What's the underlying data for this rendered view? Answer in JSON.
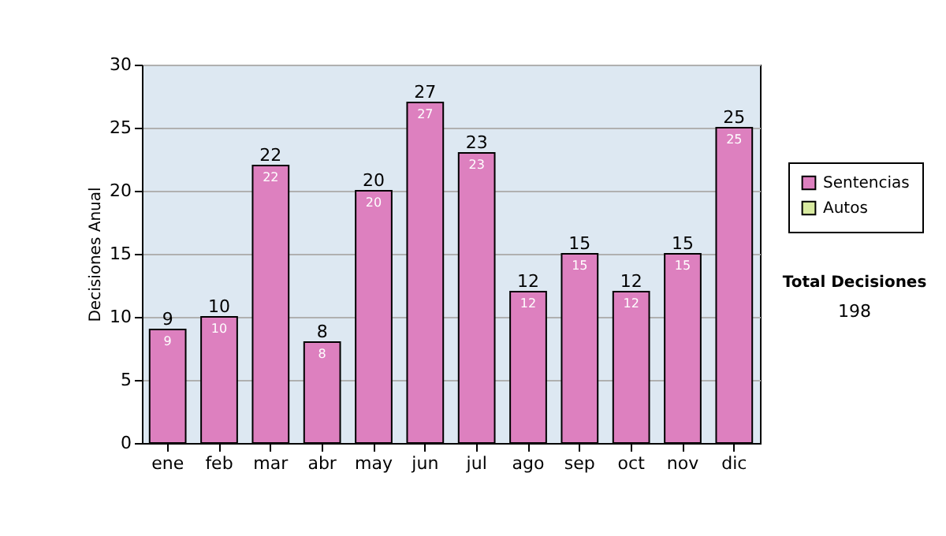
{
  "chart_data": {
    "type": "bar",
    "ylabel": "Decisiones Anual",
    "categories": [
      "ene",
      "feb",
      "mar",
      "abr",
      "may",
      "jun",
      "jul",
      "ago",
      "sep",
      "oct",
      "nov",
      "dic"
    ],
    "series": [
      {
        "name": "Sentencias",
        "color": "#dd80bf",
        "values": [
          9,
          10,
          22,
          8,
          20,
          27,
          23,
          12,
          15,
          12,
          15,
          25
        ],
        "value_labels": [
          "9",
          "10",
          "22",
          "8",
          "20",
          "27",
          "23",
          "12",
          "15",
          "12",
          "15",
          "25"
        ]
      },
      {
        "name": "Autos",
        "color": "#d8eaa0",
        "values": [
          0,
          0,
          0,
          0,
          0,
          0,
          0,
          0,
          0,
          0,
          0,
          0
        ]
      }
    ],
    "stacked": true,
    "totals": [
      "9",
      "10",
      "22",
      "8",
      "20",
      "27",
      "23",
      "12",
      "15",
      "12",
      "15",
      "25"
    ],
    "ylim": [
      0,
      30
    ],
    "yticks": [
      0,
      5,
      10,
      15,
      20,
      25,
      30
    ],
    "grid": "y",
    "legend": "right",
    "annotations": [
      "Total Decisiones",
      "198"
    ]
  }
}
